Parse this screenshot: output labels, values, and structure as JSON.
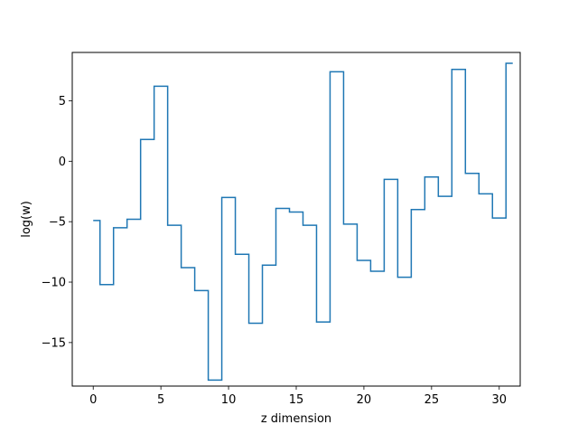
{
  "chart_data": {
    "type": "line",
    "drawstyle": "steps-mid",
    "xlabel": "z dimension",
    "ylabel": "log(w)",
    "xlim": [
      -1.55,
      31.55
    ],
    "ylim": [
      -18.6,
      9.0
    ],
    "xticks": [
      0,
      5,
      10,
      15,
      20,
      25,
      30
    ],
    "yticks": [
      -15,
      -10,
      -5,
      0,
      5
    ],
    "grid": false,
    "series": [
      {
        "color": "#1f77b4",
        "x": [
          0,
          1,
          2,
          3,
          4,
          5,
          6,
          7,
          8,
          9,
          10,
          11,
          12,
          13,
          14,
          15,
          16,
          17,
          18,
          19,
          20,
          21,
          22,
          23,
          24,
          25,
          26,
          27,
          28,
          29,
          30,
          31
        ],
        "y": [
          -4.9,
          -10.2,
          -5.5,
          -4.8,
          1.8,
          6.2,
          -5.3,
          -8.8,
          -10.7,
          -18.1,
          -3.0,
          -7.7,
          -13.4,
          -8.6,
          -3.9,
          -4.2,
          -5.3,
          -13.3,
          7.4,
          -5.2,
          -8.2,
          -9.1,
          -1.5,
          -9.6,
          -4.0,
          -1.3,
          -2.9,
          7.6,
          -1.0,
          -2.7,
          -4.7,
          8.1
        ]
      }
    ]
  }
}
